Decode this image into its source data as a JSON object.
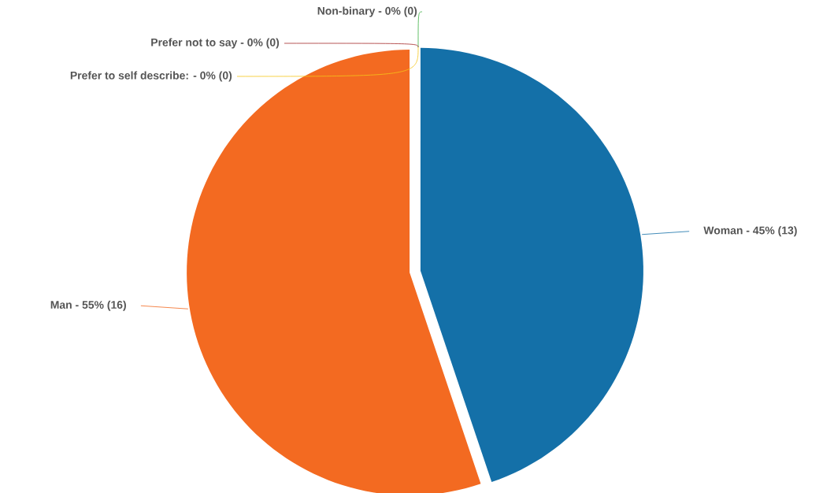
{
  "chart_data": {
    "type": "pie",
    "categories": [
      "Woman - 45% (13)",
      "Man - 55% (16)",
      "Non-binary - 0% (0)",
      "Prefer not to say - 0% (0)",
      "Prefer to self describe: - 0% (0)"
    ],
    "values": [
      13,
      16,
      0,
      0,
      0
    ],
    "colors": [
      "#1470a8",
      "#f36a21",
      "#3cb043",
      "#a52a2a",
      "#f5c518"
    ]
  }
}
